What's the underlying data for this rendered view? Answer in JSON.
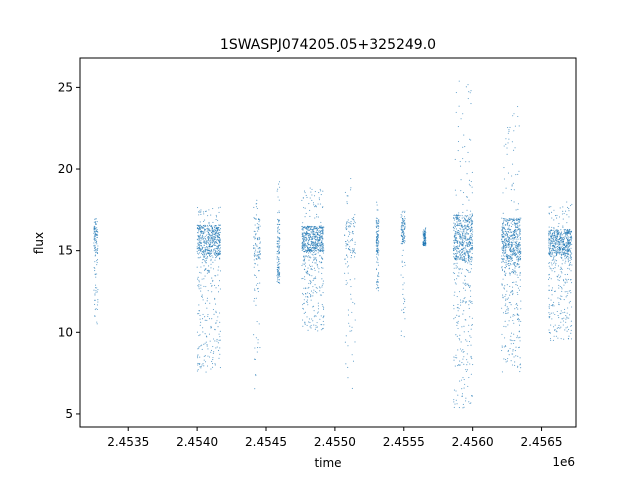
{
  "chart_data": {
    "type": "scatter",
    "title": "1SWASPJ074205.05+325249.0",
    "xlabel": "time",
    "ylabel": "flux",
    "x_offset_label": "1e6",
    "xlim": [
      2.45315,
      2.45675
    ],
    "ylim": [
      4.2,
      26.8
    ],
    "x_ticks": [
      2.4535,
      2.454,
      2.4545,
      2.455,
      2.4555,
      2.456,
      2.4565
    ],
    "x_tick_labels": [
      "2.4535",
      "2.4540",
      "2.4545",
      "2.4550",
      "2.4555",
      "2.4560",
      "2.4565"
    ],
    "y_ticks": [
      5,
      10,
      15,
      20,
      25
    ],
    "y_tick_labels": [
      "5",
      "10",
      "15",
      "20",
      "25"
    ],
    "grid": false,
    "marker_color": "#1f77b4",
    "groups": [
      {
        "x_range": [
          2.45325,
          2.45328
        ],
        "core": [
          15.0,
          16.5
        ],
        "span": [
          10.5,
          17.0
        ],
        "density": "low"
      },
      {
        "x_range": [
          2.454,
          2.45417
        ],
        "core": [
          14.8,
          16.6
        ],
        "span": [
          7.5,
          17.7
        ],
        "density": "high"
      },
      {
        "x_range": [
          2.45441,
          2.45446
        ],
        "core": [
          14.5,
          17.0
        ],
        "span": [
          6.5,
          18.2
        ],
        "density": "low"
      },
      {
        "x_range": [
          2.45458,
          2.4546
        ],
        "core": [
          14.0,
          17.0
        ],
        "span": [
          13.0,
          19.5
        ],
        "density": "low"
      },
      {
        "x_range": [
          2.45476,
          2.45492
        ],
        "core": [
          15.0,
          16.5
        ],
        "span": [
          10.0,
          19.0
        ],
        "density": "high"
      },
      {
        "x_range": [
          2.45507,
          2.45515
        ],
        "core": [
          14.5,
          17.0
        ],
        "span": [
          6.5,
          20.0
        ],
        "density": "low"
      },
      {
        "x_range": [
          2.4553,
          2.45532
        ],
        "core": [
          15.0,
          17.0
        ],
        "span": [
          12.5,
          18.0
        ],
        "density": "low"
      },
      {
        "x_range": [
          2.45548,
          2.45551
        ],
        "core": [
          15.5,
          17.0
        ],
        "span": [
          9.5,
          17.5
        ],
        "density": "low"
      },
      {
        "x_range": [
          2.45564,
          2.45566
        ],
        "core": [
          15.5,
          16.2
        ],
        "span": [
          15.3,
          16.4
        ],
        "density": "low"
      },
      {
        "x_range": [
          2.45586,
          2.456
        ],
        "core": [
          14.5,
          17.2
        ],
        "span": [
          5.3,
          25.5
        ],
        "density": "high"
      },
      {
        "x_range": [
          2.45621,
          2.45635
        ],
        "core": [
          14.5,
          17.0
        ],
        "span": [
          7.5,
          24.0
        ],
        "density": "high"
      },
      {
        "x_range": [
          2.45655,
          2.45672
        ],
        "core": [
          14.8,
          16.3
        ],
        "span": [
          9.5,
          18.0
        ],
        "density": "high"
      }
    ]
  }
}
